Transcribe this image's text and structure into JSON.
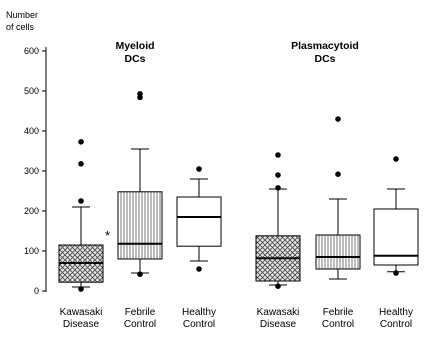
{
  "chart_data": {
    "type": "box",
    "ylabel_lines": [
      "Number",
      "of cells"
    ],
    "ylim": [
      0,
      600
    ],
    "yticks": [
      "0",
      "100",
      "200",
      "300",
      "400",
      "500",
      "600"
    ],
    "groups": [
      {
        "title_lines": [
          "Myeloid",
          "DCs"
        ]
      },
      {
        "title_lines": [
          "Plasmacytoid",
          "DCs"
        ]
      }
    ],
    "boxes": [
      {
        "label_lines": [
          "Kawasaki",
          "Disease"
        ],
        "group": 0,
        "pattern": "crosshatch",
        "whisker_low": 10,
        "q1": 22,
        "median": 70,
        "q3": 115,
        "whisker_high": 210,
        "outliers": [
          5,
          225,
          318,
          373
        ],
        "annotation": "*"
      },
      {
        "label_lines": [
          "Febrile",
          "Control"
        ],
        "group": 0,
        "pattern": "vertical-lines",
        "whisker_low": 45,
        "q1": 80,
        "median": 118,
        "q3": 248,
        "whisker_high": 355,
        "outliers": [
          42,
          484,
          493
        ],
        "annotation": ""
      },
      {
        "label_lines": [
          "Healthy",
          "Control"
        ],
        "group": 0,
        "pattern": "none",
        "whisker_low": 75,
        "q1": 112,
        "median": 185,
        "q3": 235,
        "whisker_high": 280,
        "outliers": [
          55,
          305
        ],
        "annotation": ""
      },
      {
        "label_lines": [
          "Kawasaki",
          "Disease"
        ],
        "group": 1,
        "pattern": "crosshatch",
        "whisker_low": 15,
        "q1": 25,
        "median": 82,
        "q3": 138,
        "whisker_high": 255,
        "outliers": [
          12,
          258,
          290,
          340
        ],
        "annotation": ""
      },
      {
        "label_lines": [
          "Febrile",
          "Control"
        ],
        "group": 1,
        "pattern": "vertical-lines",
        "whisker_low": 30,
        "q1": 55,
        "median": 85,
        "q3": 140,
        "whisker_high": 230,
        "outliers": [
          292,
          430
        ],
        "annotation": ""
      },
      {
        "label_lines": [
          "Healthy",
          "Control"
        ],
        "group": 1,
        "pattern": "none",
        "whisker_low": 48,
        "q1": 65,
        "median": 88,
        "q3": 205,
        "whisker_high": 255,
        "outliers": [
          45,
          330
        ],
        "annotation": ""
      }
    ]
  }
}
